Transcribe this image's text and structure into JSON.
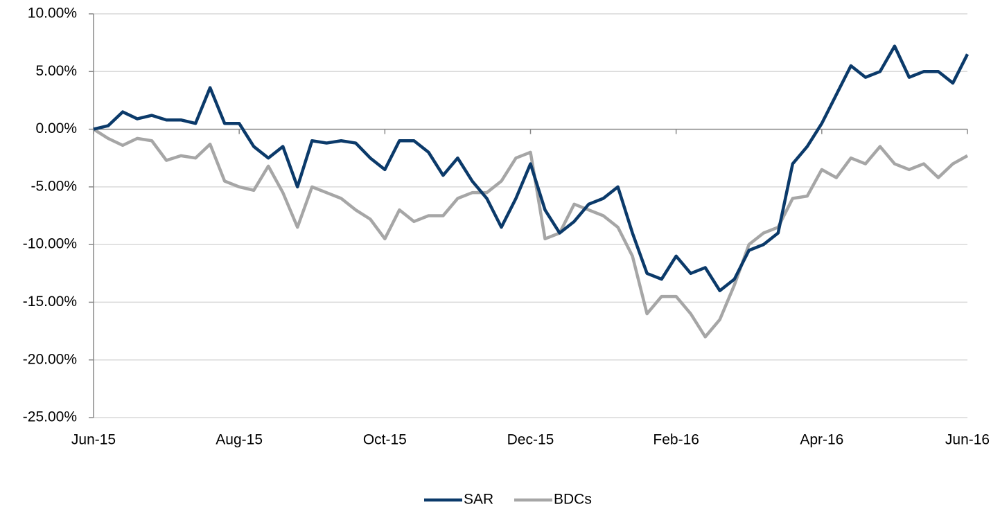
{
  "chart_data": {
    "type": "line",
    "categories": [
      "Jun-15",
      null,
      null,
      null,
      null,
      null,
      null,
      null,
      null,
      null,
      "Aug-15",
      null,
      null,
      null,
      null,
      null,
      null,
      null,
      null,
      null,
      "Oct-15",
      null,
      null,
      null,
      null,
      null,
      null,
      null,
      null,
      null,
      "Dec-15",
      null,
      null,
      null,
      null,
      null,
      null,
      null,
      null,
      null,
      "Feb-16",
      null,
      null,
      null,
      null,
      null,
      null,
      null,
      null,
      null,
      "Apr-16",
      null,
      null,
      null,
      null,
      null,
      null,
      null,
      null,
      null,
      "Jun-16"
    ],
    "series": [
      {
        "name": "SAR",
        "color": "#0b3a6a",
        "values": [
          0.0,
          0.3,
          1.5,
          0.9,
          1.2,
          0.8,
          0.8,
          0.5,
          3.6,
          0.5,
          0.5,
          -1.5,
          -2.5,
          -1.5,
          -5.0,
          -1.0,
          -1.2,
          -1.0,
          -1.2,
          -2.5,
          -3.5,
          -1.0,
          -1.0,
          -2.0,
          -4.0,
          -2.5,
          -4.5,
          -6.0,
          -8.5,
          -6.0,
          -3.0,
          -7.0,
          -9.0,
          -8.0,
          -6.5,
          -6.0,
          -5.0,
          -9.0,
          -12.5,
          -13.0,
          -11.0,
          -12.5,
          -12.0,
          -14.0,
          -13.0,
          -10.5,
          -10.0,
          -9.0,
          -3.0,
          -1.5,
          0.5,
          3.0,
          5.5,
          4.5,
          5.0,
          7.2,
          4.5,
          5.0,
          5.0,
          4.0,
          6.5
        ]
      },
      {
        "name": "BDCs",
        "color": "#a6a6a6",
        "values": [
          0.0,
          -0.8,
          -1.4,
          -0.8,
          -1.0,
          -2.7,
          -2.3,
          -2.5,
          -1.3,
          -4.5,
          -5.0,
          -5.3,
          -3.2,
          -5.5,
          -8.5,
          -5.0,
          -5.5,
          -6.0,
          -7.0,
          -7.8,
          -9.5,
          -7.0,
          -8.0,
          -7.5,
          -7.5,
          -6.0,
          -5.5,
          -5.5,
          -4.5,
          -2.5,
          -2.0,
          -9.5,
          -9.0,
          -6.5,
          -7.0,
          -7.5,
          -8.5,
          -11.0,
          -16.0,
          -14.5,
          -14.5,
          -16.0,
          -18.0,
          -16.5,
          -13.5,
          -10.0,
          -9.0,
          -8.5,
          -6.0,
          -5.8,
          -3.5,
          -4.2,
          -2.5,
          -3.0,
          -1.5,
          -3.0,
          -3.5,
          -3.0,
          -4.2,
          -3.0,
          -2.3
        ]
      }
    ],
    "ylim": [
      -25,
      10
    ],
    "yticks": [
      {
        "value": -25,
        "label": "-25.00%"
      },
      {
        "value": -20,
        "label": "-20.00%"
      },
      {
        "value": -15,
        "label": "-15.00%"
      },
      {
        "value": -10,
        "label": "-10.00%"
      },
      {
        "value": -5,
        "label": "-5.00%"
      },
      {
        "value": 0,
        "label": "0.00%"
      },
      {
        "value": 5,
        "label": "5.00%"
      },
      {
        "value": 10,
        "label": "10.00%"
      }
    ],
    "grid": true,
    "legend": "bottom"
  }
}
